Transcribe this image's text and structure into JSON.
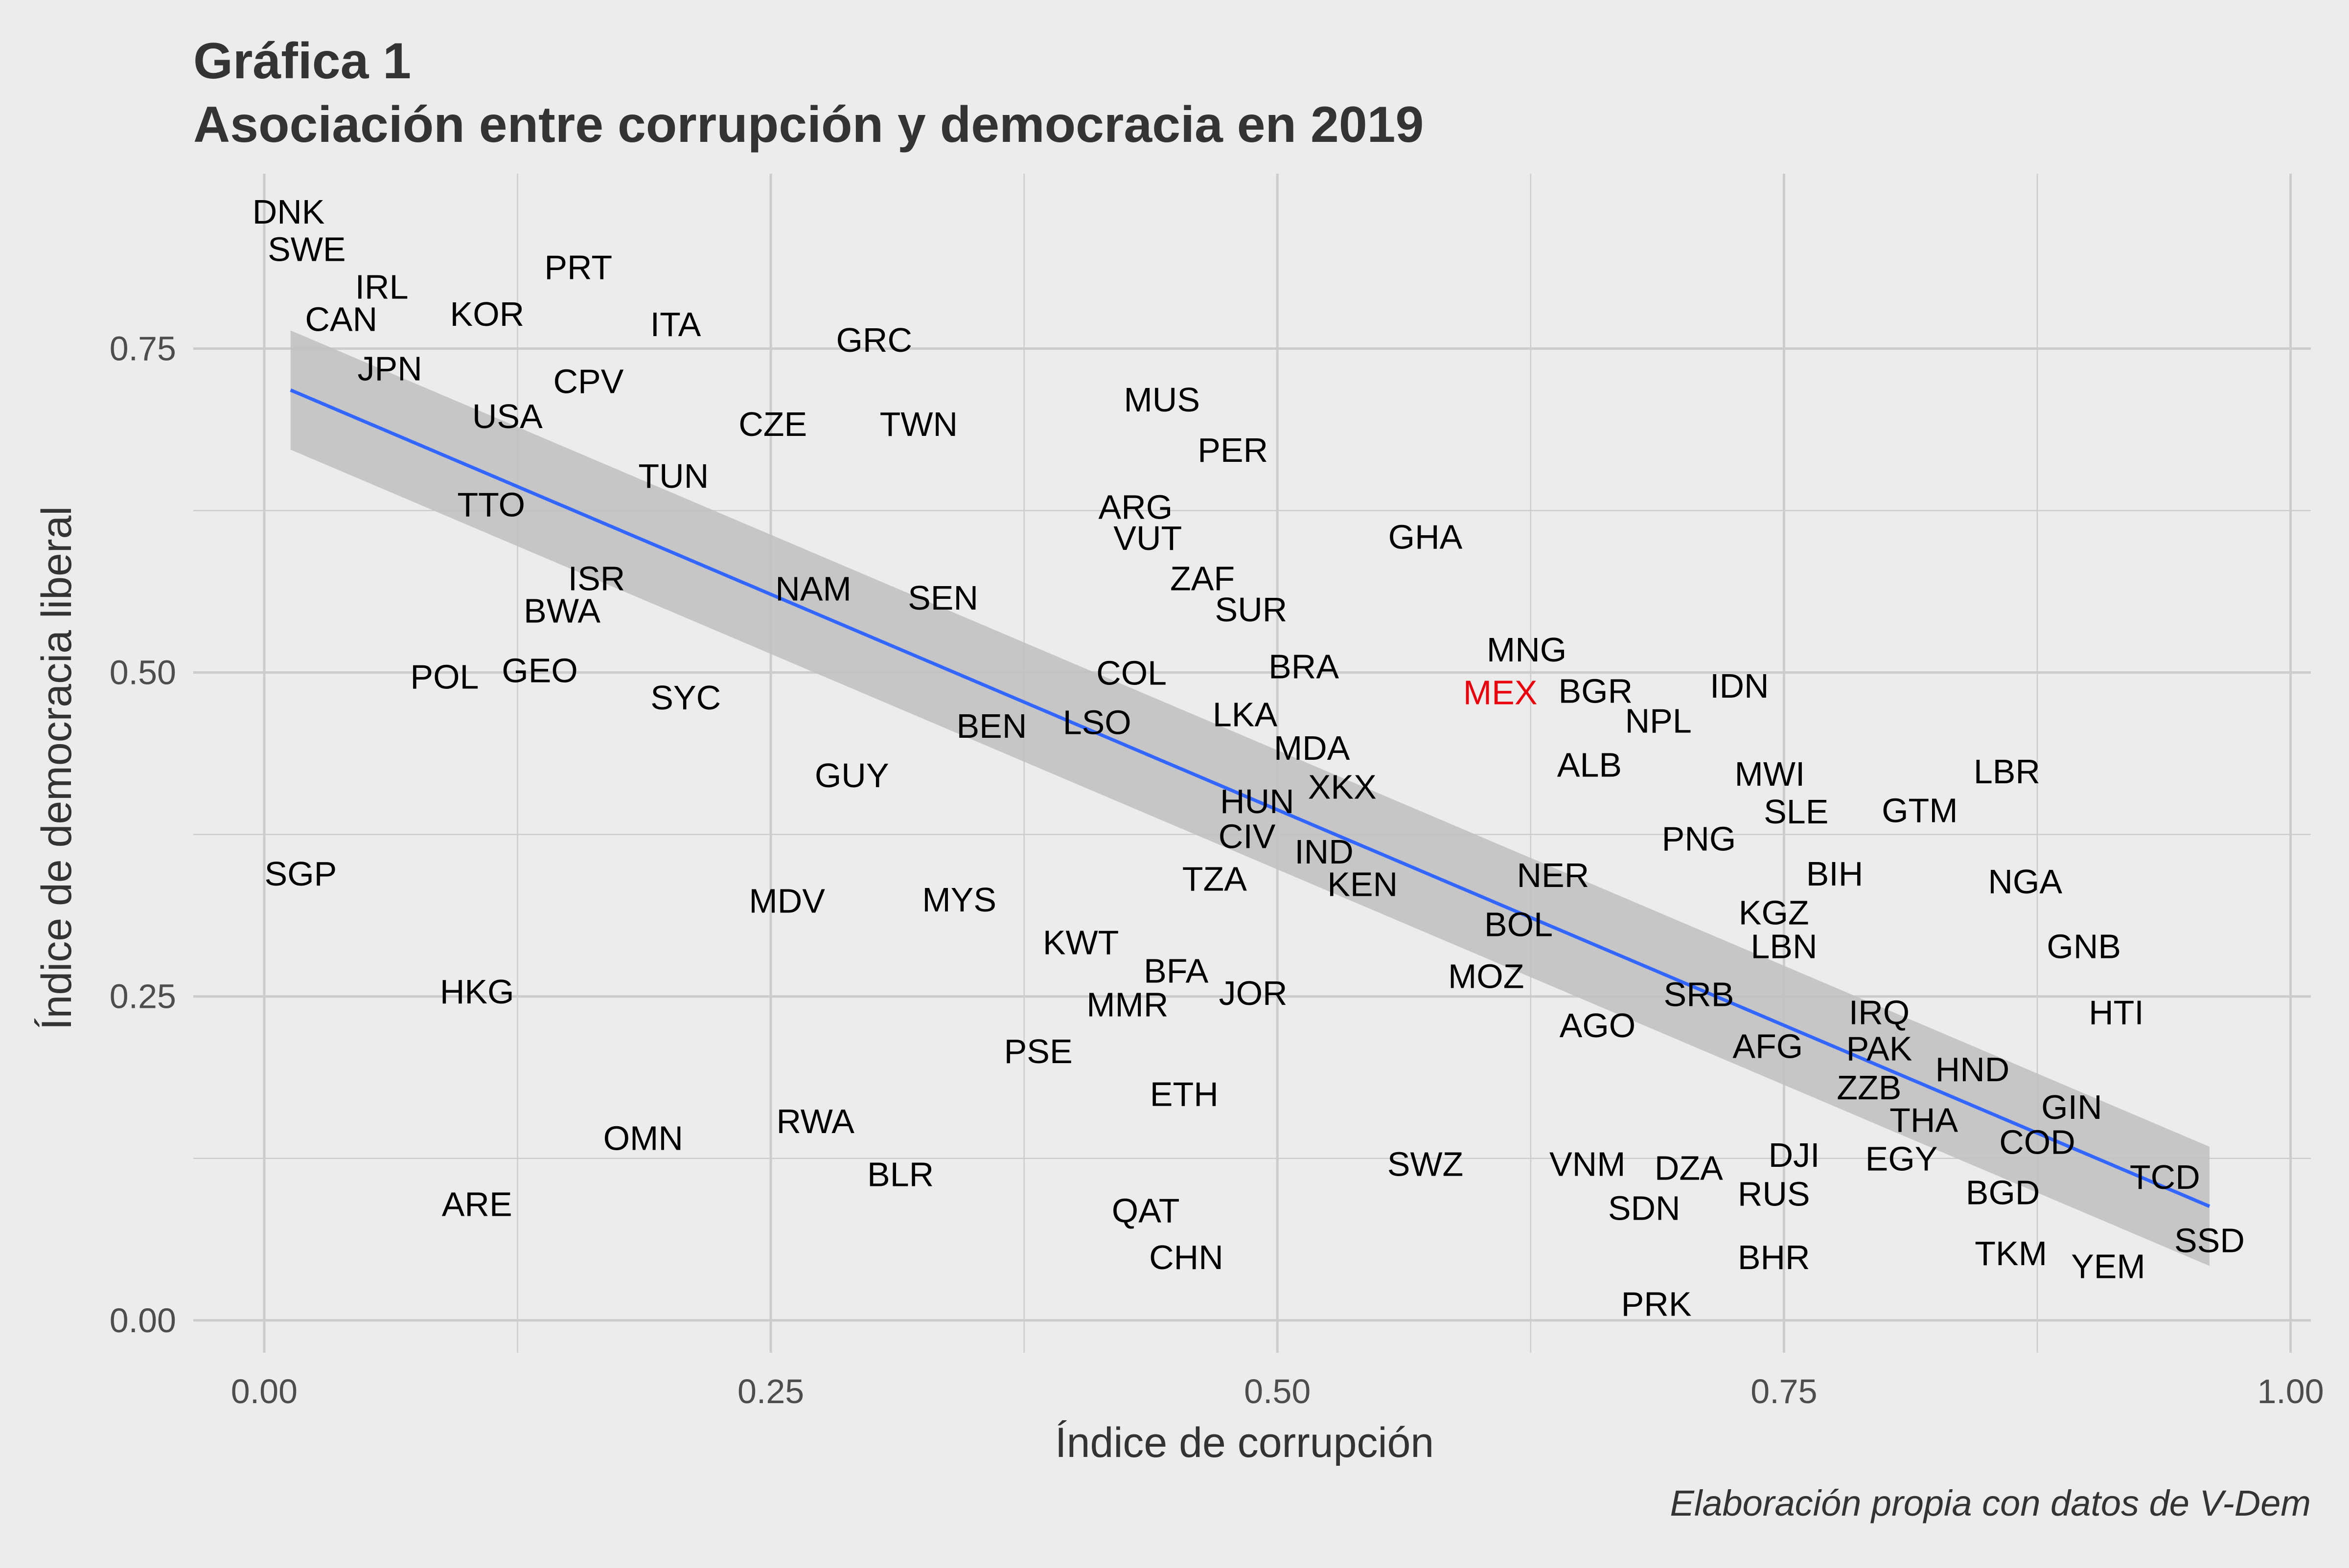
{
  "chart_data": {
    "type": "scatter",
    "title": "Gráfica 1",
    "subtitle": "Asociación entre corrupción y democracia en 2019",
    "xlabel": "Índice de corrupción",
    "ylabel": "Índice de democracia liberal",
    "caption": "Elaboración propia con datos de V-Dem",
    "xlim": [
      -0.035,
      1.01
    ],
    "ylim": [
      -0.025,
      0.885
    ],
    "x_ticks": [
      0,
      0.25,
      0.5,
      0.75,
      1
    ],
    "x_tick_labels": [
      "0.00",
      "0.25",
      "0.50",
      "0.75",
      "1.00"
    ],
    "y_ticks": [
      0,
      0.25,
      0.5,
      0.75
    ],
    "y_tick_labels": [
      "0.00",
      "0.25",
      "0.50",
      "0.75"
    ],
    "grid": true,
    "legend": "none",
    "colors": {
      "background": "#ececec",
      "grid": "#cccccc",
      "label": "#000000",
      "highlight": "#e8000d",
      "trend_line": "#3366ff",
      "confidence_band": "#bfbfbf"
    },
    "trend_line": {
      "x": [
        0.013,
        0.96
      ],
      "y": [
        0.718,
        0.088
      ],
      "band_upper": [
        0.764,
        0.134
      ],
      "band_lower": [
        0.672,
        0.042
      ]
    },
    "points": [
      {
        "label": "DNK",
        "x": 0.012,
        "y": 0.856
      },
      {
        "label": "SWE",
        "x": 0.021,
        "y": 0.827
      },
      {
        "label": "IRL",
        "x": 0.058,
        "y": 0.798
      },
      {
        "label": "PRT",
        "x": 0.155,
        "y": 0.813
      },
      {
        "label": "CAN",
        "x": 0.038,
        "y": 0.773
      },
      {
        "label": "KOR",
        "x": 0.11,
        "y": 0.777
      },
      {
        "label": "ITA",
        "x": 0.203,
        "y": 0.769
      },
      {
        "label": "GRC",
        "x": 0.301,
        "y": 0.757
      },
      {
        "label": "JPN",
        "x": 0.062,
        "y": 0.735
      },
      {
        "label": "CPV",
        "x": 0.16,
        "y": 0.725
      },
      {
        "label": "USA",
        "x": 0.12,
        "y": 0.698
      },
      {
        "label": "CZE",
        "x": 0.251,
        "y": 0.692
      },
      {
        "label": "TWN",
        "x": 0.323,
        "y": 0.692
      },
      {
        "label": "MUS",
        "x": 0.443,
        "y": 0.711
      },
      {
        "label": "PER",
        "x": 0.478,
        "y": 0.672
      },
      {
        "label": "TUN",
        "x": 0.202,
        "y": 0.652
      },
      {
        "label": "TTO",
        "x": 0.112,
        "y": 0.63
      },
      {
        "label": "ARG",
        "x": 0.43,
        "y": 0.628
      },
      {
        "label": "VUT",
        "x": 0.436,
        "y": 0.604
      },
      {
        "label": "GHA",
        "x": 0.573,
        "y": 0.605
      },
      {
        "label": "ZAF",
        "x": 0.463,
        "y": 0.573
      },
      {
        "label": "ISR",
        "x": 0.164,
        "y": 0.573
      },
      {
        "label": "NAM",
        "x": 0.271,
        "y": 0.565
      },
      {
        "label": "SEN",
        "x": 0.335,
        "y": 0.558
      },
      {
        "label": "SUR",
        "x": 0.487,
        "y": 0.549
      },
      {
        "label": "BWA",
        "x": 0.147,
        "y": 0.548
      },
      {
        "label": "MNG",
        "x": 0.623,
        "y": 0.518
      },
      {
        "label": "BRA",
        "x": 0.513,
        "y": 0.505
      },
      {
        "label": "GEO",
        "x": 0.136,
        "y": 0.502
      },
      {
        "label": "COL",
        "x": 0.428,
        "y": 0.5
      },
      {
        "label": "POL",
        "x": 0.089,
        "y": 0.497
      },
      {
        "label": "IDN",
        "x": 0.728,
        "y": 0.49
      },
      {
        "label": "MEX",
        "x": 0.61,
        "y": 0.485,
        "highlight": true
      },
      {
        "label": "BGR",
        "x": 0.657,
        "y": 0.486
      },
      {
        "label": "SYC",
        "x": 0.208,
        "y": 0.481
      },
      {
        "label": "NPL",
        "x": 0.688,
        "y": 0.463
      },
      {
        "label": "LKA",
        "x": 0.484,
        "y": 0.468
      },
      {
        "label": "LSO",
        "x": 0.411,
        "y": 0.462
      },
      {
        "label": "BEN",
        "x": 0.359,
        "y": 0.459
      },
      {
        "label": "MDA",
        "x": 0.517,
        "y": 0.442
      },
      {
        "label": "ALB",
        "x": 0.654,
        "y": 0.429
      },
      {
        "label": "MWI",
        "x": 0.743,
        "y": 0.422
      },
      {
        "label": "LBR",
        "x": 0.86,
        "y": 0.424
      },
      {
        "label": "GUY",
        "x": 0.29,
        "y": 0.421
      },
      {
        "label": "XKX",
        "x": 0.532,
        "y": 0.412
      },
      {
        "label": "HUN",
        "x": 0.49,
        "y": 0.401
      },
      {
        "label": "SLE",
        "x": 0.756,
        "y": 0.393
      },
      {
        "label": "GTM",
        "x": 0.817,
        "y": 0.394
      },
      {
        "label": "PNG",
        "x": 0.708,
        "y": 0.372
      },
      {
        "label": "CIV",
        "x": 0.485,
        "y": 0.374
      },
      {
        "label": "IND",
        "x": 0.523,
        "y": 0.362
      },
      {
        "label": "SGP",
        "x": 0.018,
        "y": 0.345
      },
      {
        "label": "BIH",
        "x": 0.775,
        "y": 0.345
      },
      {
        "label": "NER",
        "x": 0.636,
        "y": 0.344
      },
      {
        "label": "TZA",
        "x": 0.469,
        "y": 0.341
      },
      {
        "label": "NGA",
        "x": 0.869,
        "y": 0.339
      },
      {
        "label": "KEN",
        "x": 0.542,
        "y": 0.337
      },
      {
        "label": "MDV",
        "x": 0.258,
        "y": 0.324
      },
      {
        "label": "MYS",
        "x": 0.343,
        "y": 0.325
      },
      {
        "label": "KGZ",
        "x": 0.745,
        "y": 0.315
      },
      {
        "label": "BOL",
        "x": 0.619,
        "y": 0.306
      },
      {
        "label": "KWT",
        "x": 0.403,
        "y": 0.292
      },
      {
        "label": "LBN",
        "x": 0.75,
        "y": 0.289
      },
      {
        "label": "GNB",
        "x": 0.898,
        "y": 0.289
      },
      {
        "label": "BFA",
        "x": 0.45,
        "y": 0.27
      },
      {
        "label": "MOZ",
        "x": 0.603,
        "y": 0.266
      },
      {
        "label": "JOR",
        "x": 0.488,
        "y": 0.253
      },
      {
        "label": "HKG",
        "x": 0.105,
        "y": 0.254
      },
      {
        "label": "SRB",
        "x": 0.708,
        "y": 0.252
      },
      {
        "label": "MMR",
        "x": 0.426,
        "y": 0.244
      },
      {
        "label": "IRQ",
        "x": 0.797,
        "y": 0.238
      },
      {
        "label": "HTI",
        "x": 0.914,
        "y": 0.238
      },
      {
        "label": "AGO",
        "x": 0.658,
        "y": 0.228
      },
      {
        "label": "AFG",
        "x": 0.742,
        "y": 0.212
      },
      {
        "label": "PAK",
        "x": 0.797,
        "y": 0.21
      },
      {
        "label": "PSE",
        "x": 0.382,
        "y": 0.208
      },
      {
        "label": "HND",
        "x": 0.843,
        "y": 0.194
      },
      {
        "label": "ZZB",
        "x": 0.792,
        "y": 0.18
      },
      {
        "label": "ETH",
        "x": 0.454,
        "y": 0.175
      },
      {
        "label": "GIN",
        "x": 0.892,
        "y": 0.165
      },
      {
        "label": "THA",
        "x": 0.819,
        "y": 0.155
      },
      {
        "label": "RWA",
        "x": 0.272,
        "y": 0.154
      },
      {
        "label": "OMN",
        "x": 0.187,
        "y": 0.141
      },
      {
        "label": "COD",
        "x": 0.875,
        "y": 0.138
      },
      {
        "label": "DJI",
        "x": 0.755,
        "y": 0.128
      },
      {
        "label": "EGY",
        "x": 0.808,
        "y": 0.125
      },
      {
        "label": "SWZ",
        "x": 0.573,
        "y": 0.121
      },
      {
        "label": "VNM",
        "x": 0.653,
        "y": 0.121
      },
      {
        "label": "DZA",
        "x": 0.703,
        "y": 0.118
      },
      {
        "label": "BLR",
        "x": 0.314,
        "y": 0.113
      },
      {
        "label": "TCD",
        "x": 0.938,
        "y": 0.111
      },
      {
        "label": "RUS",
        "x": 0.745,
        "y": 0.098
      },
      {
        "label": "BGD",
        "x": 0.858,
        "y": 0.099
      },
      {
        "label": "ARE",
        "x": 0.105,
        "y": 0.09
      },
      {
        "label": "SDN",
        "x": 0.681,
        "y": 0.087
      },
      {
        "label": "QAT",
        "x": 0.435,
        "y": 0.085
      },
      {
        "label": "SSD",
        "x": 0.96,
        "y": 0.062
      },
      {
        "label": "TKM",
        "x": 0.862,
        "y": 0.052
      },
      {
        "label": "BHR",
        "x": 0.745,
        "y": 0.049
      },
      {
        "label": "CHN",
        "x": 0.455,
        "y": 0.049
      },
      {
        "label": "YEM",
        "x": 0.91,
        "y": 0.042
      },
      {
        "label": "PRK",
        "x": 0.687,
        "y": 0.013
      }
    ]
  }
}
